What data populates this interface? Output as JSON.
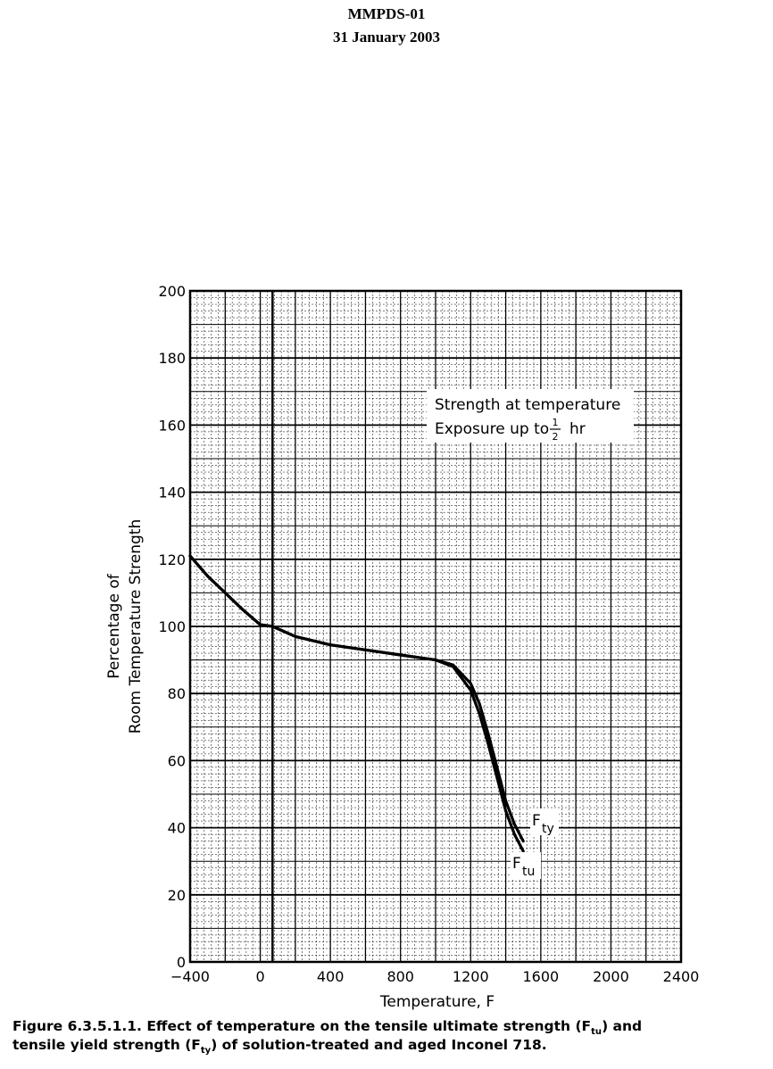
{
  "header": {
    "line1": "MMPDS-01",
    "line2": "31 January 2003"
  },
  "caption": {
    "prefix": "Figure 6.3.5.1.1.  Effect of temperature on the tensile ultimate strength (F",
    "sub1": "tu",
    "mid": ") and",
    "line2_prefix": "tensile yield strength (F",
    "sub2": "ty",
    "line2_suffix": ") of solution-treated and aged Inconel 718."
  },
  "chart_data": {
    "type": "line",
    "xlabel": "Temperature, F",
    "ylabel_line1": "Percentage of",
    "ylabel_line2": "Room  Temperature  Strength",
    "xlim": [
      -400,
      2400
    ],
    "ylim": [
      0,
      200
    ],
    "x_ticks": [
      -400,
      0,
      400,
      800,
      1200,
      1600,
      2000,
      2400
    ],
    "x_tick_labels": [
      "−400",
      "0",
      "400",
      "800",
      "1200",
      "1600",
      "2000",
      "2400"
    ],
    "y_ticks": [
      0,
      20,
      40,
      60,
      80,
      100,
      120,
      140,
      160,
      180,
      200
    ],
    "y_tick_labels": [
      "0",
      "20",
      "40",
      "60",
      "80",
      "100",
      "120",
      "140",
      "160",
      "180",
      "200"
    ],
    "grid": true,
    "annotation_line1": "Strength at temperature",
    "annotation_line2_prefix": "Exposure up to",
    "annotation_line2_suffix": "hr",
    "annotation_fraction": {
      "num": "1",
      "den": "2"
    },
    "series": [
      {
        "name": "Fty",
        "label_main": "F",
        "label_sub": "ty",
        "x": [
          -400,
          -300,
          -200,
          -100,
          0,
          70,
          200,
          400,
          600,
          800,
          1000,
          1100,
          1200,
          1250,
          1300,
          1350,
          1400,
          1450,
          1500
        ],
        "y": [
          121,
          115,
          110,
          105,
          100.5,
          100,
          97,
          94.5,
          93,
          91.5,
          90,
          88.5,
          83,
          77,
          68,
          58,
          48,
          41,
          36
        ]
      },
      {
        "name": "Ftu",
        "label_main": "F",
        "label_sub": "tu",
        "x": [
          -400,
          -300,
          -200,
          -100,
          0,
          70,
          200,
          400,
          600,
          800,
          1000,
          1100,
          1200,
          1250,
          1300,
          1350,
          1400,
          1450,
          1500
        ],
        "y": [
          121,
          115,
          110,
          105,
          100.5,
          100,
          97,
          94.5,
          93,
          91.5,
          90,
          88,
          81,
          74,
          65,
          55,
          45,
          38,
          33
        ]
      }
    ],
    "reference_line_x": 70
  }
}
